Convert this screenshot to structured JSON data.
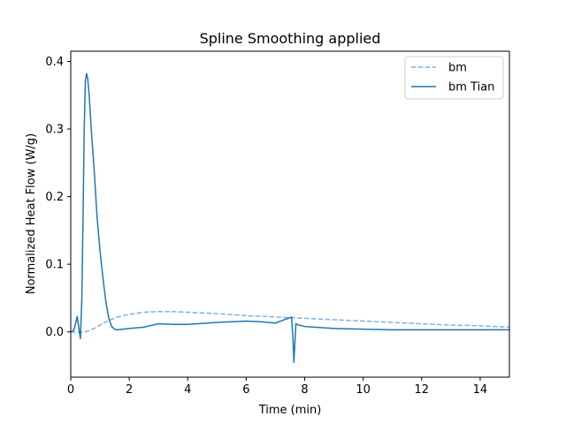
{
  "chart_data": {
    "type": "line",
    "title": "Spline Smoothing applied",
    "xlabel": "Time (min)",
    "ylabel": "Normalized Heat Flow (W/g)",
    "xlim": [
      0,
      15
    ],
    "ylim": [
      -0.067,
      0.415
    ],
    "xticks": [
      0,
      2,
      4,
      6,
      8,
      10,
      12,
      14
    ],
    "yticks": [
      0.0,
      0.1,
      0.2,
      0.3,
      0.4
    ],
    "xtick_labels": [
      "0",
      "2",
      "4",
      "6",
      "8",
      "10",
      "12",
      "14"
    ],
    "ytick_labels": [
      "0.0",
      "0.1",
      "0.2",
      "0.3",
      "0.4"
    ],
    "grid": false,
    "legend_position": "upper right",
    "series": [
      {
        "name": "bm",
        "color": "#7fb3d9",
        "linestyle": "dashed",
        "x": [
          0,
          0.2,
          0.5,
          0.8,
          1.0,
          1.3,
          1.6,
          2.0,
          2.5,
          3.0,
          3.5,
          4.0,
          5.0,
          6.0,
          7.0,
          8.0,
          9.0,
          10.0,
          11.0,
          12.0,
          13.0,
          14.0,
          15.0
        ],
        "y": [
          0.0,
          -0.001,
          0.0,
          0.005,
          0.01,
          0.017,
          0.022,
          0.026,
          0.029,
          0.03,
          0.03,
          0.029,
          0.027,
          0.024,
          0.022,
          0.02,
          0.018,
          0.016,
          0.014,
          0.012,
          0.01,
          0.009,
          0.007
        ]
      },
      {
        "name": "bm Tian",
        "color": "#1f77b4",
        "linestyle": "solid",
        "x": [
          0.0,
          0.1,
          0.18,
          0.22,
          0.28,
          0.33,
          0.38,
          0.42,
          0.46,
          0.5,
          0.54,
          0.58,
          0.63,
          0.7,
          0.8,
          0.9,
          1.0,
          1.1,
          1.2,
          1.3,
          1.4,
          1.5,
          1.6,
          1.8,
          2.0,
          2.5,
          3.0,
          3.5,
          4.0,
          5.0,
          6.0,
          6.5,
          7.0,
          7.3,
          7.5,
          7.55,
          7.6,
          7.63,
          7.66,
          7.7,
          7.8,
          8.0,
          9.0,
          10.0,
          11.0,
          12.0,
          13.0,
          14.0,
          15.0
        ],
        "y": [
          0.0,
          0.002,
          0.015,
          0.023,
          0.005,
          -0.01,
          0.05,
          0.17,
          0.3,
          0.37,
          0.382,
          0.375,
          0.35,
          0.3,
          0.24,
          0.17,
          0.12,
          0.08,
          0.045,
          0.02,
          0.008,
          0.004,
          0.003,
          0.004,
          0.005,
          0.007,
          0.012,
          0.011,
          0.011,
          0.014,
          0.016,
          0.015,
          0.013,
          0.018,
          0.021,
          0.022,
          -0.01,
          -0.045,
          -0.02,
          0.012,
          0.01,
          0.008,
          0.005,
          0.004,
          0.003,
          0.003,
          0.003,
          0.003,
          0.003
        ]
      }
    ]
  }
}
